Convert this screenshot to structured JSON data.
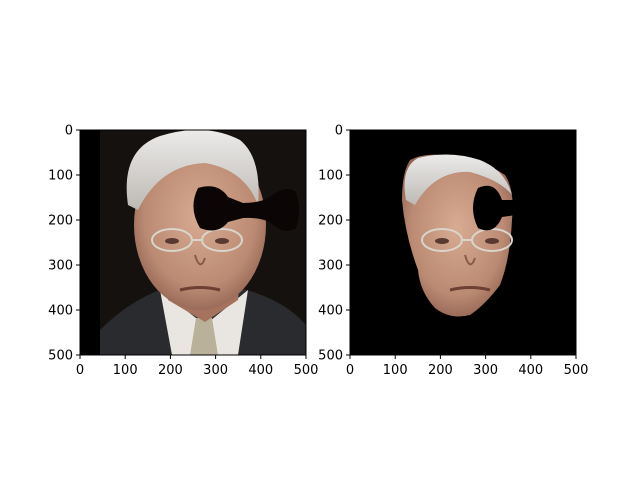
{
  "figure": {
    "panels": [
      {
        "id": "left",
        "image": "original face photo with black occluder",
        "x_ticks": [
          "0",
          "100",
          "200",
          "300",
          "400",
          "500"
        ],
        "y_ticks": [
          "0",
          "100",
          "200",
          "300",
          "400",
          "500"
        ]
      },
      {
        "id": "right",
        "image": "segmented face on black background with occluder cutout",
        "x_ticks": [
          "0",
          "100",
          "200",
          "300",
          "400",
          "500"
        ],
        "y_ticks": [
          "0",
          "100",
          "200",
          "300",
          "400",
          "500"
        ]
      }
    ],
    "colors": {
      "background": "#ffffff",
      "axes": "#000000",
      "dark_bg": "#14110f",
      "suit": "#2a2b2e",
      "shirt": "#e9e6e2",
      "tie": "#b9b19a",
      "skin": "#c99b84",
      "skin_shadow": "#a5725e",
      "hair": "#dad7d3",
      "occluder": "#0b0605"
    }
  }
}
